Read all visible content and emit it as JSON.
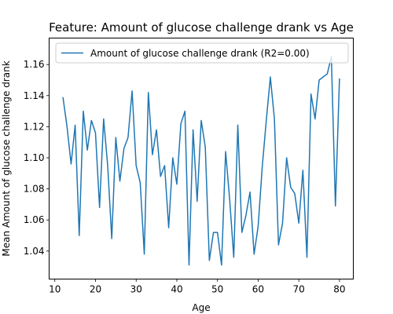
{
  "chart_data": {
    "type": "line",
    "title": "Feature: Amount of glucose challenge drank vs Age",
    "xlabel": "Age",
    "ylabel": "Mean Amount of glucose challenge drank",
    "xlim": [
      8.6,
      83.4
    ],
    "ylim": [
      1.022,
      1.177
    ],
    "xticks": [
      10,
      20,
      30,
      40,
      50,
      60,
      70,
      80
    ],
    "yticks": [
      1.04,
      1.06,
      1.08,
      1.1,
      1.12,
      1.14,
      1.16
    ],
    "grid": false,
    "legend_position": "top-left",
    "series": [
      {
        "name": "Amount of glucose challenge drank (R2=0.00)",
        "color": "#1f77b4",
        "x": [
          12,
          13,
          14,
          15,
          16,
          17,
          18,
          19,
          20,
          21,
          22,
          23,
          24,
          25,
          26,
          27,
          28,
          29,
          30,
          31,
          32,
          33,
          34,
          35,
          36,
          37,
          38,
          39,
          40,
          41,
          42,
          43,
          44,
          45,
          46,
          47,
          48,
          49,
          50,
          51,
          52,
          53,
          54,
          55,
          56,
          57,
          58,
          59,
          60,
          61,
          62,
          63,
          64,
          65,
          66,
          67,
          68,
          69,
          70,
          71,
          72,
          73,
          74,
          75,
          76,
          77,
          78,
          79,
          80
        ],
        "y": [
          1.139,
          1.12,
          1.096,
          1.121,
          1.05,
          1.13,
          1.105,
          1.124,
          1.116,
          1.068,
          1.125,
          1.095,
          1.048,
          1.113,
          1.085,
          1.106,
          1.113,
          1.143,
          1.095,
          1.084,
          1.038,
          1.142,
          1.102,
          1.118,
          1.088,
          1.095,
          1.055,
          1.1,
          1.083,
          1.122,
          1.13,
          1.031,
          1.118,
          1.072,
          1.124,
          1.107,
          1.034,
          1.052,
          1.052,
          1.031,
          1.104,
          1.073,
          1.036,
          1.121,
          1.052,
          1.063,
          1.078,
          1.038,
          1.056,
          1.094,
          1.124,
          1.152,
          1.125,
          1.044,
          1.058,
          1.1,
          1.081,
          1.077,
          1.058,
          1.092,
          1.036,
          1.141,
          1.125,
          1.15,
          1.152,
          1.154,
          1.165,
          1.069,
          1.151
        ]
      }
    ]
  }
}
